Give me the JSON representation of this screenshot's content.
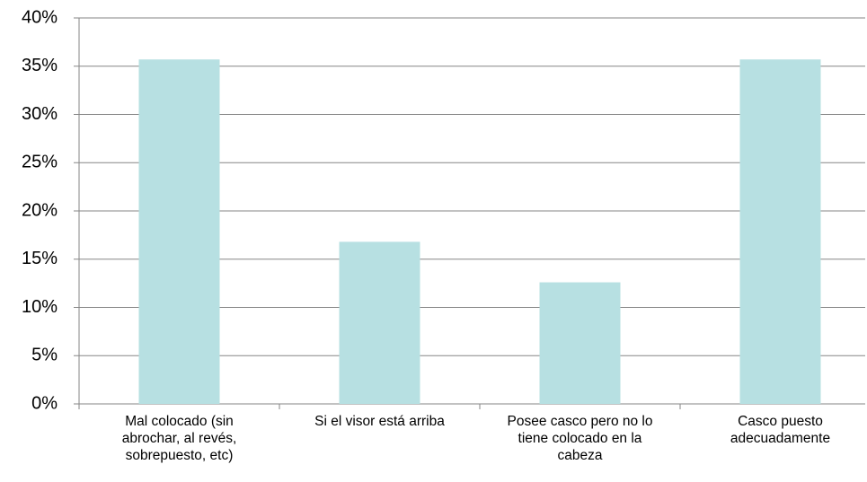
{
  "chart_data": {
    "type": "bar",
    "categories": [
      "Mal colocado (sin abrochar, al revés, sobrepuesto, etc)",
      "Si el visor está arriba",
      "Posee casco pero no lo tiene colocado en la cabeza",
      "Casco puesto adecuadamente"
    ],
    "values": [
      35.7,
      16.8,
      12.6,
      35.7
    ],
    "color": "#b7e0e2",
    "ylim": [
      0,
      40
    ],
    "yticks": [
      {
        "value": 0,
        "label": "0%"
      },
      {
        "value": 5,
        "label": "5%"
      },
      {
        "value": 10,
        "label": "10%"
      },
      {
        "value": 15,
        "label": "15%"
      },
      {
        "value": 20,
        "label": "20%"
      },
      {
        "value": 25,
        "label": "25%"
      },
      {
        "value": 30,
        "label": "30%"
      },
      {
        "value": 35,
        "label": "35%"
      },
      {
        "value": 40,
        "label": "40%"
      }
    ],
    "grid": true
  }
}
